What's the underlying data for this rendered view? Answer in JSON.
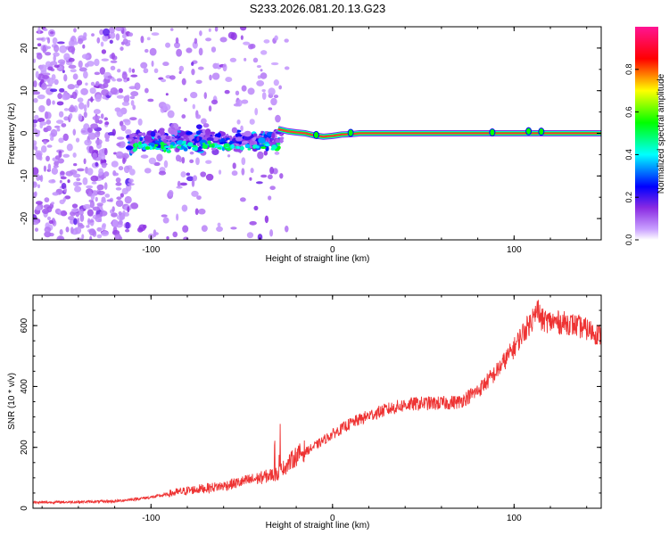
{
  "title": "S233.2026.081.20.13.G23",
  "chart_data": [
    {
      "type": "heatmap",
      "name": "spectrogram",
      "xlabel": "Height of straight line (km)",
      "ylabel": "Frequency (Hz)",
      "xlim": [
        -165,
        148
      ],
      "ylim": [
        -25,
        25
      ],
      "xticks": [
        -100,
        0,
        100
      ],
      "yticks": [
        -20,
        -10,
        0,
        10,
        20
      ],
      "line": {
        "x": [
          -30,
          -25,
          -20,
          -15,
          -10,
          -5,
          0,
          5,
          10,
          15,
          30,
          50,
          80,
          100,
          120,
          148
        ],
        "freq": [
          1,
          0.5,
          0.2,
          0,
          -0.5,
          -0.8,
          -0.6,
          -0.3,
          -0.2,
          0,
          0,
          0,
          0,
          0,
          0,
          0
        ],
        "amplitude": [
          0.2,
          0.5,
          0.6,
          0.75,
          0.85,
          0.9,
          0.9,
          0.92,
          0.92,
          0.93,
          0.93,
          0.93,
          0.93,
          0.93,
          0.93,
          0.93
        ]
      },
      "colorbar": {
        "label": "Normalized spectral amplitude",
        "range": [
          0,
          1
        ],
        "ticks": [
          "0.0",
          "0.2",
          "0.4",
          "0.6",
          "0.8"
        ],
        "colors": [
          "#ffffff",
          "#8a2be2",
          "#0000ff",
          "#00ffff",
          "#00ff00",
          "#ffff00",
          "#ff0000",
          "#ff1493"
        ]
      }
    },
    {
      "type": "line",
      "name": "snr",
      "xlabel": "Height of straight line (km)",
      "ylabel": "SNR (10 * v/v)",
      "xlim": [
        -165,
        148
      ],
      "ylim": [
        0,
        700
      ],
      "xticks": [
        -100,
        0,
        100
      ],
      "yticks": [
        0,
        200,
        400,
        600
      ],
      "color": "#ee3333",
      "x": [
        -165,
        -140,
        -120,
        -100,
        -80,
        -60,
        -40,
        -30,
        -20,
        -10,
        0,
        10,
        20,
        30,
        40,
        50,
        60,
        70,
        80,
        90,
        100,
        105,
        110,
        113,
        115,
        120,
        130,
        140,
        148
      ],
      "y": [
        18,
        20,
        22,
        35,
        55,
        70,
        95,
        110,
        165,
        200,
        240,
        275,
        300,
        320,
        335,
        340,
        340,
        345,
        380,
        440,
        520,
        570,
        610,
        650,
        610,
        605,
        600,
        580,
        560
      ]
    }
  ]
}
